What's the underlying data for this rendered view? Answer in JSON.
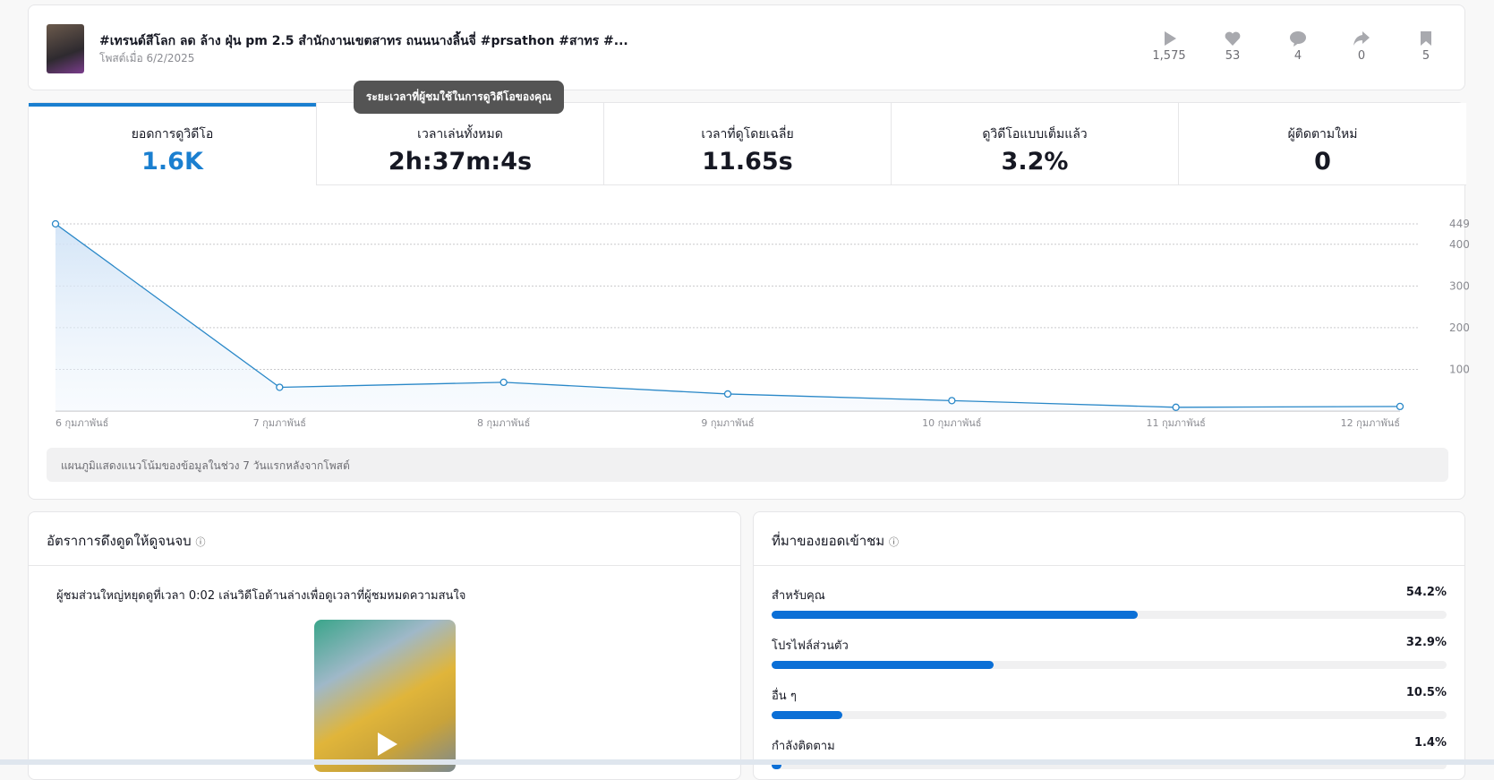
{
  "header": {
    "title": "#เทรนด์สีโลก ลด ล้าง ฝุ่น pm 2.5 สำนักงานเขตสาทร ถนนนางลิ้นจี่ #prsathon #สาทร #...",
    "posted": "โพสต์เมื่อ 6/2/2025",
    "stats": [
      "1,575",
      "53",
      "4",
      "0",
      "5"
    ]
  },
  "metrics": [
    {
      "label": "ยอดการดูวิดีโอ",
      "value": "1.6K"
    },
    {
      "label": "เวลาเล่นทั้งหมด",
      "value": "2h:37m:4s"
    },
    {
      "label": "เวลาที่ดูโดยเฉลี่ย",
      "value": "11.65s"
    },
    {
      "label": "ดูวิดีโอแบบเต็มแล้ว",
      "value": "3.2%"
    },
    {
      "label": "ผู้ติดตามใหม่",
      "value": "0"
    }
  ],
  "tooltip": "ระยะเวลาที่ผู้ชมใช้ในการดูวิดีโอของคุณ",
  "chart": {
    "type": "line",
    "categories": [
      "6 กุมภาพันธ์",
      "7 กุมภาพันธ์",
      "8 กุมภาพันธ์",
      "9 กุมภาพันธ์",
      "10 กุมภาพันธ์",
      "11 กุมภาพันธ์",
      "12 กุมภาพันธ์"
    ],
    "values": [
      449,
      57,
      69,
      41,
      25,
      9,
      11
    ],
    "ylim": [
      0,
      449
    ],
    "yticks": [
      100,
      200,
      300,
      400,
      449
    ],
    "color": "#2a88c8",
    "grid": true
  },
  "chart_note": "แผนภูมิแสดงแนวโน้มของข้อมูลในช่วง 7 วันแรกหลังจากโพสต์",
  "retention": {
    "title": "อัตราการดึงดูดให้ดูจนจบ",
    "text": "ผู้ชมส่วนใหญ่หยุดดูที่เวลา 0:02 เล่นวิดีโอด้านล่างเพื่อดูเวลาที่ผู้ชมหมดความสนใจ"
  },
  "traffic": {
    "title": "ที่มาของยอดเข้าชม",
    "xlim": [
      0,
      100
    ],
    "color": "#0b6fd6",
    "sources": [
      {
        "name": "สำหรับคุณ",
        "value": 54.2,
        "label": "54.2%"
      },
      {
        "name": "โปรไฟล์ส่วนตัว",
        "value": 32.9,
        "label": "32.9%"
      },
      {
        "name": "อื่น ๆ",
        "value": 10.5,
        "label": "10.5%"
      },
      {
        "name": "กำลังติดตาม",
        "value": 1.4,
        "label": "1.4%"
      }
    ]
  }
}
